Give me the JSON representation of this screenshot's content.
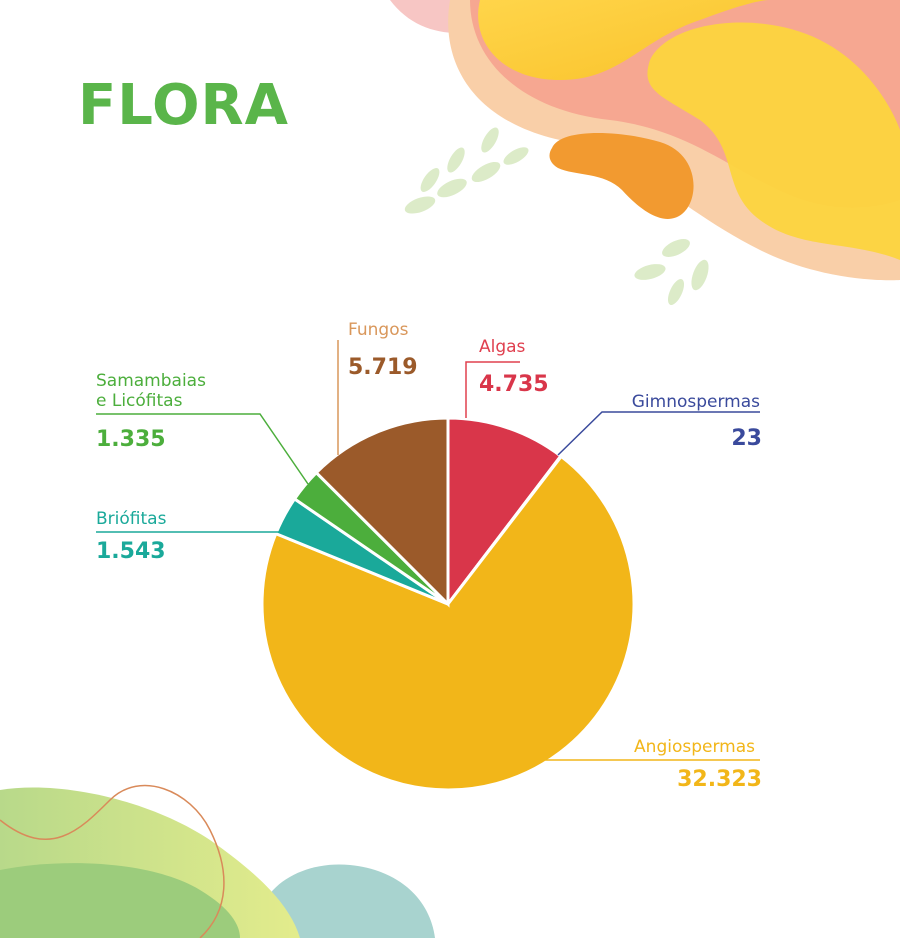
{
  "page": {
    "title": "FLORA"
  },
  "chart_data": {
    "type": "pie",
    "title": "FLORA",
    "slices": [
      {
        "label": "Algas",
        "value": 4735,
        "display": "4.735",
        "color": "#d9364a",
        "label_lines": [
          "Algas"
        ]
      },
      {
        "label": "Gimnospermas",
        "value": 23,
        "display": "23",
        "color": "#3a4a9c",
        "label_lines": [
          "Gimnospermas"
        ]
      },
      {
        "label": "Angiospermas",
        "value": 32323,
        "display": "32.323",
        "color": "#f2b619",
        "label_lines": [
          "Angiospermas"
        ]
      },
      {
        "label": "Briófitas",
        "value": 1543,
        "display": "1.543",
        "color": "#1aa99a",
        "label_lines": [
          "Briófitas"
        ]
      },
      {
        "label": "Samambaias e Licófitas",
        "value": 1335,
        "display": "1.335",
        "color": "#4cae3c",
        "label_lines": [
          "Samambaias",
          "e Licófitas"
        ]
      },
      {
        "label": "Fungos",
        "value": 5719,
        "display": "5.719",
        "color": "#9b5a2a",
        "label_lines": [
          "Fungos"
        ]
      }
    ],
    "colors": {
      "title": "#5ab54a",
      "fungos_name": "#d9975b",
      "algas_name": "#e0404f"
    }
  }
}
